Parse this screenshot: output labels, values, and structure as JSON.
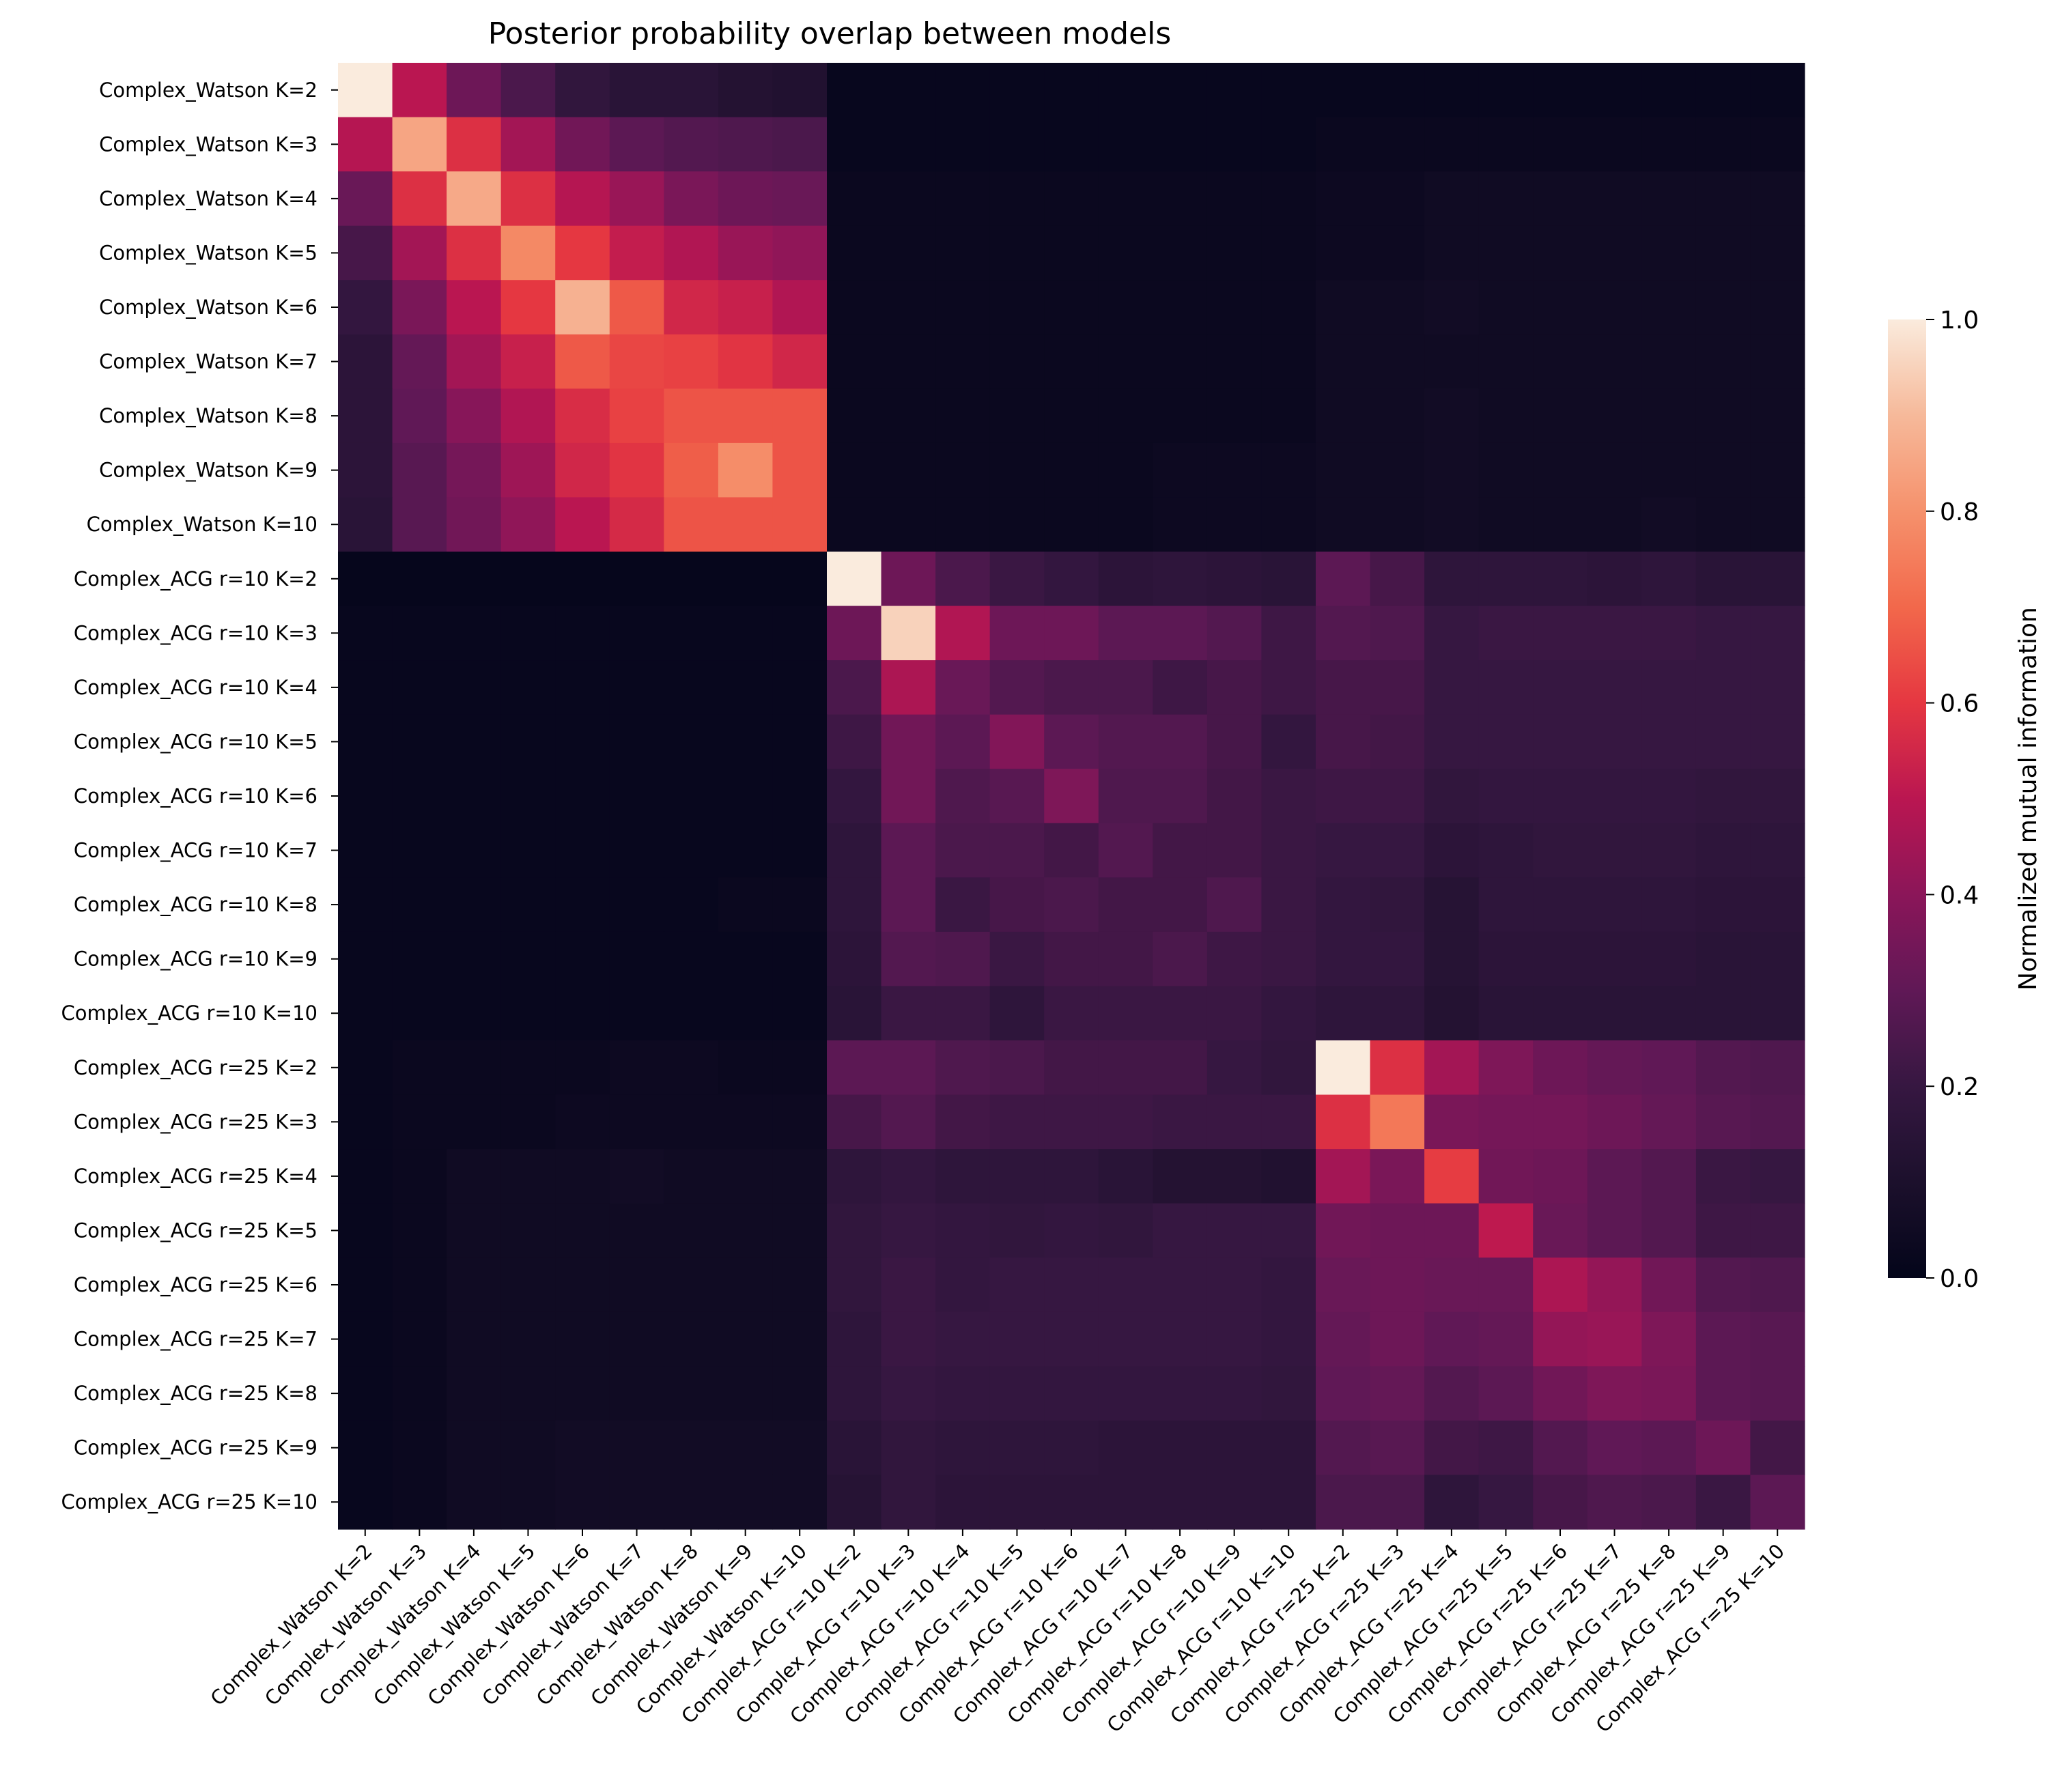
{
  "chart_data": {
    "type": "heatmap",
    "title": "Posterior probability overlap between models",
    "xlabel": "",
    "ylabel": "",
    "colorbar": {
      "label": "Normalized mutual information",
      "ticks": [
        1.0,
        0.8,
        0.6,
        0.4,
        0.2,
        0.0
      ],
      "tick_labels": [
        "1.0",
        "0.8",
        "0.6",
        "0.4",
        "0.2",
        "0.0"
      ],
      "range": [
        0,
        1
      ],
      "colormap": "rocket"
    },
    "row_labels": [
      "Complex_Watson K=2",
      "Complex_Watson K=3",
      "Complex_Watson K=4",
      "Complex_Watson K=5",
      "Complex_Watson K=6",
      "Complex_Watson K=7",
      "Complex_Watson K=8",
      "Complex_Watson K=9",
      "Complex_Watson K=10",
      "Complex_ACG r=10 K=2",
      "Complex_ACG r=10 K=3",
      "Complex_ACG r=10 K=4",
      "Complex_ACG r=10 K=5",
      "Complex_ACG r=10 K=6",
      "Complex_ACG r=10 K=7",
      "Complex_ACG r=10 K=8",
      "Complex_ACG r=10 K=9",
      "Complex_ACG r=10 K=10",
      "Complex_ACG r=25 K=2",
      "Complex_ACG r=25 K=3",
      "Complex_ACG r=25 K=4",
      "Complex_ACG r=25 K=5",
      "Complex_ACG r=25 K=6",
      "Complex_ACG r=25 K=7",
      "Complex_ACG r=25 K=8",
      "Complex_ACG r=25 K=9",
      "Complex_ACG r=25 K=10"
    ],
    "col_labels": [
      "Complex_Watson K=2",
      "Complex_Watson K=3",
      "Complex_Watson K=4",
      "Complex_Watson K=5",
      "Complex_Watson K=6",
      "Complex_Watson K=7",
      "Complex_Watson K=8",
      "Complex_Watson K=9",
      "Complex_Watson K=10",
      "Complex_ACG r=10 K=2",
      "Complex_ACG r=10 K=3",
      "Complex_ACG r=10 K=4",
      "Complex_ACG r=10 K=5",
      "Complex_ACG r=10 K=6",
      "Complex_ACG r=10 K=7",
      "Complex_ACG r=10 K=8",
      "Complex_ACG r=10 K=9",
      "Complex_ACG r=10 K=10",
      "Complex_ACG r=25 K=2",
      "Complex_ACG r=25 K=3",
      "Complex_ACG r=25 K=4",
      "Complex_ACG r=25 K=5",
      "Complex_ACG r=25 K=6",
      "Complex_ACG r=25 K=7",
      "Complex_ACG r=25 K=8",
      "Complex_ACG r=25 K=9",
      "Complex_ACG r=25 K=10"
    ],
    "values": [
      [
        1.0,
        0.5,
        0.33,
        0.25,
        0.18,
        0.15,
        0.15,
        0.13,
        0.12,
        0.02,
        0.02,
        0.02,
        0.02,
        0.02,
        0.02,
        0.02,
        0.02,
        0.02,
        0.02,
        0.02,
        0.02,
        0.02,
        0.02,
        0.02,
        0.02,
        0.02,
        0.02
      ],
      [
        0.49,
        0.85,
        0.58,
        0.45,
        0.34,
        0.29,
        0.27,
        0.26,
        0.25,
        0.02,
        0.02,
        0.02,
        0.02,
        0.02,
        0.02,
        0.02,
        0.02,
        0.02,
        0.03,
        0.03,
        0.03,
        0.03,
        0.03,
        0.03,
        0.03,
        0.03,
        0.03
      ],
      [
        0.32,
        0.58,
        0.86,
        0.58,
        0.49,
        0.43,
        0.36,
        0.33,
        0.32,
        0.03,
        0.03,
        0.03,
        0.03,
        0.03,
        0.03,
        0.03,
        0.03,
        0.03,
        0.04,
        0.04,
        0.05,
        0.05,
        0.05,
        0.05,
        0.05,
        0.05,
        0.05
      ],
      [
        0.24,
        0.45,
        0.58,
        0.78,
        0.6,
        0.52,
        0.48,
        0.43,
        0.41,
        0.03,
        0.03,
        0.03,
        0.03,
        0.03,
        0.03,
        0.03,
        0.03,
        0.03,
        0.04,
        0.04,
        0.05,
        0.05,
        0.05,
        0.05,
        0.05,
        0.05,
        0.05
      ],
      [
        0.19,
        0.36,
        0.5,
        0.6,
        0.88,
        0.67,
        0.55,
        0.53,
        0.48,
        0.03,
        0.03,
        0.03,
        0.03,
        0.03,
        0.03,
        0.03,
        0.03,
        0.03,
        0.05,
        0.05,
        0.06,
        0.05,
        0.05,
        0.05,
        0.05,
        0.05,
        0.05
      ],
      [
        0.16,
        0.31,
        0.45,
        0.53,
        0.67,
        0.63,
        0.62,
        0.59,
        0.55,
        0.03,
        0.03,
        0.03,
        0.03,
        0.03,
        0.03,
        0.03,
        0.03,
        0.03,
        0.05,
        0.05,
        0.05,
        0.05,
        0.05,
        0.05,
        0.05,
        0.05,
        0.05
      ],
      [
        0.16,
        0.3,
        0.39,
        0.48,
        0.57,
        0.62,
        0.66,
        0.66,
        0.66,
        0.03,
        0.03,
        0.03,
        0.03,
        0.03,
        0.03,
        0.03,
        0.03,
        0.03,
        0.05,
        0.05,
        0.06,
        0.05,
        0.05,
        0.05,
        0.05,
        0.05,
        0.05
      ],
      [
        0.16,
        0.28,
        0.35,
        0.44,
        0.55,
        0.59,
        0.68,
        0.79,
        0.66,
        0.03,
        0.03,
        0.03,
        0.03,
        0.03,
        0.03,
        0.04,
        0.04,
        0.04,
        0.05,
        0.05,
        0.06,
        0.05,
        0.05,
        0.05,
        0.05,
        0.05,
        0.05
      ],
      [
        0.15,
        0.28,
        0.34,
        0.41,
        0.5,
        0.56,
        0.66,
        0.66,
        0.66,
        0.03,
        0.03,
        0.03,
        0.03,
        0.03,
        0.03,
        0.04,
        0.04,
        0.04,
        0.05,
        0.05,
        0.06,
        0.05,
        0.05,
        0.05,
        0.06,
        0.05,
        0.05
      ],
      [
        0.01,
        0.01,
        0.01,
        0.01,
        0.01,
        0.01,
        0.01,
        0.01,
        0.01,
        1.0,
        0.33,
        0.25,
        0.21,
        0.19,
        0.16,
        0.17,
        0.16,
        0.15,
        0.29,
        0.24,
        0.17,
        0.17,
        0.17,
        0.16,
        0.17,
        0.15,
        0.15
      ],
      [
        0.02,
        0.02,
        0.02,
        0.02,
        0.02,
        0.02,
        0.02,
        0.02,
        0.02,
        0.33,
        0.95,
        0.48,
        0.33,
        0.33,
        0.29,
        0.29,
        0.27,
        0.22,
        0.27,
        0.26,
        0.2,
        0.21,
        0.21,
        0.21,
        0.21,
        0.2,
        0.2
      ],
      [
        0.02,
        0.02,
        0.02,
        0.02,
        0.02,
        0.02,
        0.02,
        0.02,
        0.02,
        0.25,
        0.47,
        0.32,
        0.27,
        0.25,
        0.25,
        0.22,
        0.24,
        0.22,
        0.24,
        0.24,
        0.2,
        0.2,
        0.2,
        0.2,
        0.2,
        0.2,
        0.2
      ],
      [
        0.02,
        0.02,
        0.02,
        0.02,
        0.02,
        0.02,
        0.02,
        0.02,
        0.02,
        0.22,
        0.34,
        0.29,
        0.38,
        0.29,
        0.27,
        0.27,
        0.24,
        0.19,
        0.24,
        0.23,
        0.2,
        0.2,
        0.2,
        0.2,
        0.2,
        0.2,
        0.2
      ],
      [
        0.02,
        0.02,
        0.02,
        0.02,
        0.02,
        0.02,
        0.02,
        0.02,
        0.02,
        0.19,
        0.34,
        0.26,
        0.28,
        0.37,
        0.26,
        0.26,
        0.23,
        0.21,
        0.22,
        0.22,
        0.18,
        0.19,
        0.19,
        0.19,
        0.19,
        0.18,
        0.18
      ],
      [
        0.02,
        0.02,
        0.02,
        0.02,
        0.02,
        0.02,
        0.02,
        0.02,
        0.02,
        0.17,
        0.29,
        0.25,
        0.25,
        0.23,
        0.27,
        0.23,
        0.23,
        0.21,
        0.2,
        0.2,
        0.16,
        0.17,
        0.18,
        0.18,
        0.18,
        0.17,
        0.17
      ],
      [
        0.02,
        0.02,
        0.02,
        0.02,
        0.02,
        0.02,
        0.02,
        0.03,
        0.03,
        0.17,
        0.29,
        0.21,
        0.24,
        0.25,
        0.23,
        0.23,
        0.26,
        0.21,
        0.19,
        0.18,
        0.14,
        0.17,
        0.17,
        0.17,
        0.17,
        0.16,
        0.16
      ],
      [
        0.02,
        0.02,
        0.02,
        0.02,
        0.02,
        0.02,
        0.02,
        0.02,
        0.02,
        0.16,
        0.27,
        0.26,
        0.21,
        0.23,
        0.23,
        0.25,
        0.22,
        0.21,
        0.19,
        0.19,
        0.14,
        0.16,
        0.16,
        0.16,
        0.16,
        0.15,
        0.15
      ],
      [
        0.02,
        0.02,
        0.02,
        0.02,
        0.02,
        0.02,
        0.02,
        0.02,
        0.02,
        0.15,
        0.21,
        0.21,
        0.17,
        0.21,
        0.21,
        0.21,
        0.21,
        0.19,
        0.17,
        0.17,
        0.13,
        0.15,
        0.15,
        0.15,
        0.15,
        0.15,
        0.15
      ],
      [
        0.02,
        0.03,
        0.03,
        0.03,
        0.03,
        0.04,
        0.04,
        0.03,
        0.03,
        0.29,
        0.29,
        0.26,
        0.25,
        0.23,
        0.23,
        0.23,
        0.2,
        0.18,
        1.0,
        0.58,
        0.45,
        0.37,
        0.33,
        0.31,
        0.3,
        0.27,
        0.26
      ],
      [
        0.02,
        0.03,
        0.03,
        0.03,
        0.04,
        0.04,
        0.04,
        0.04,
        0.04,
        0.24,
        0.27,
        0.23,
        0.22,
        0.22,
        0.22,
        0.21,
        0.21,
        0.21,
        0.58,
        0.74,
        0.36,
        0.35,
        0.35,
        0.33,
        0.31,
        0.28,
        0.27
      ],
      [
        0.02,
        0.03,
        0.05,
        0.05,
        0.05,
        0.06,
        0.05,
        0.05,
        0.05,
        0.17,
        0.19,
        0.17,
        0.17,
        0.17,
        0.15,
        0.13,
        0.13,
        0.12,
        0.45,
        0.36,
        0.61,
        0.34,
        0.33,
        0.29,
        0.27,
        0.21,
        0.2
      ],
      [
        0.02,
        0.03,
        0.05,
        0.05,
        0.05,
        0.05,
        0.05,
        0.05,
        0.05,
        0.18,
        0.2,
        0.19,
        0.18,
        0.19,
        0.18,
        0.2,
        0.2,
        0.2,
        0.34,
        0.33,
        0.33,
        0.51,
        0.32,
        0.29,
        0.27,
        0.22,
        0.22
      ],
      [
        0.02,
        0.03,
        0.05,
        0.05,
        0.05,
        0.05,
        0.05,
        0.05,
        0.05,
        0.18,
        0.21,
        0.19,
        0.2,
        0.2,
        0.2,
        0.2,
        0.2,
        0.19,
        0.32,
        0.33,
        0.32,
        0.32,
        0.47,
        0.42,
        0.34,
        0.27,
        0.26
      ],
      [
        0.02,
        0.03,
        0.05,
        0.05,
        0.05,
        0.05,
        0.05,
        0.05,
        0.05,
        0.17,
        0.21,
        0.2,
        0.2,
        0.2,
        0.2,
        0.2,
        0.2,
        0.19,
        0.31,
        0.33,
        0.3,
        0.31,
        0.42,
        0.43,
        0.37,
        0.29,
        0.28
      ],
      [
        0.02,
        0.03,
        0.05,
        0.05,
        0.05,
        0.05,
        0.05,
        0.05,
        0.05,
        0.17,
        0.2,
        0.19,
        0.19,
        0.19,
        0.19,
        0.19,
        0.19,
        0.18,
        0.3,
        0.31,
        0.27,
        0.29,
        0.34,
        0.37,
        0.36,
        0.29,
        0.28
      ],
      [
        0.02,
        0.03,
        0.05,
        0.05,
        0.06,
        0.06,
        0.06,
        0.06,
        0.06,
        0.15,
        0.18,
        0.17,
        0.17,
        0.17,
        0.16,
        0.16,
        0.16,
        0.16,
        0.27,
        0.28,
        0.23,
        0.22,
        0.27,
        0.3,
        0.29,
        0.33,
        0.23
      ],
      [
        0.02,
        0.03,
        0.05,
        0.05,
        0.06,
        0.06,
        0.06,
        0.06,
        0.06,
        0.14,
        0.18,
        0.16,
        0.16,
        0.16,
        0.16,
        0.16,
        0.16,
        0.16,
        0.25,
        0.25,
        0.17,
        0.2,
        0.24,
        0.26,
        0.25,
        0.21,
        0.29
      ]
    ]
  }
}
